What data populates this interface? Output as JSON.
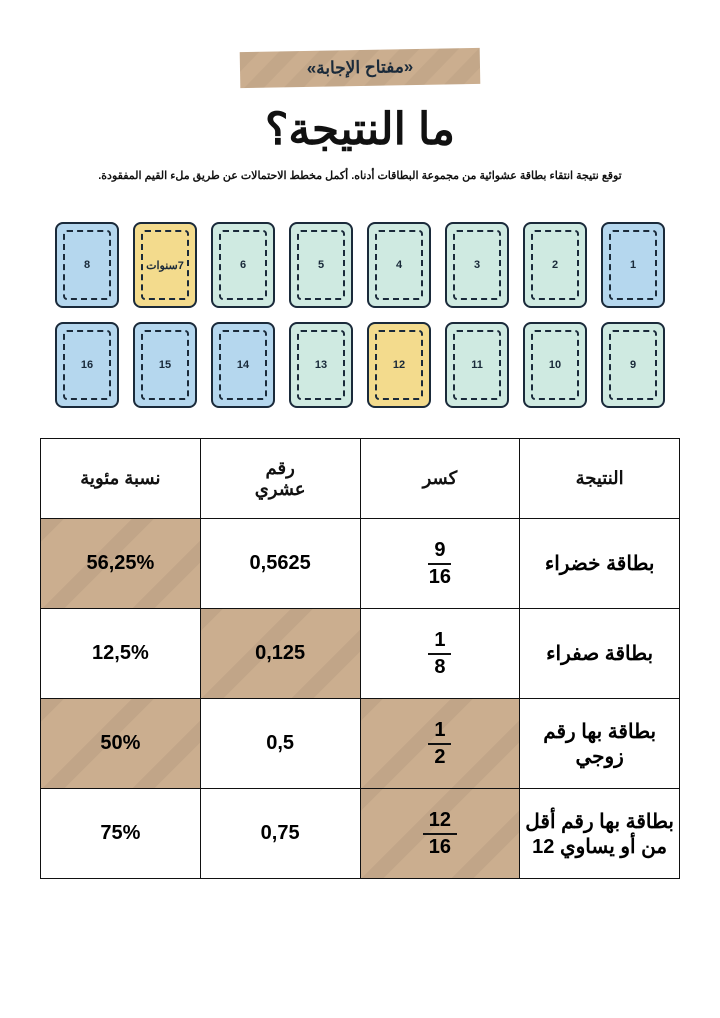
{
  "header": {
    "tape": "«مفتاح الإجابة»",
    "title": "ما النتيجة؟",
    "subtitle": "توقع نتيجة انتقاء بطاقة عشوائية من مجموعة البطاقات أدناه. أكمل مخطط الاحتمالات عن طريق ملء القيم المفقودة."
  },
  "cards": {
    "row1": [
      {
        "label": "1",
        "color": "blue"
      },
      {
        "label": "2",
        "color": "green"
      },
      {
        "label": "3",
        "color": "green"
      },
      {
        "label": "4",
        "color": "green"
      },
      {
        "label": "5",
        "color": "green"
      },
      {
        "label": "6",
        "color": "green"
      },
      {
        "label": "7سنوات",
        "color": "yellow"
      },
      {
        "label": "8",
        "color": "blue"
      }
    ],
    "row2": [
      {
        "label": "9",
        "color": "green"
      },
      {
        "label": "10",
        "color": "green"
      },
      {
        "label": "11",
        "color": "green"
      },
      {
        "label": "12",
        "color": "yellow"
      },
      {
        "label": "13",
        "color": "green"
      },
      {
        "label": "14",
        "color": "blue"
      },
      {
        "label": "15",
        "color": "blue"
      },
      {
        "label": "16",
        "color": "blue"
      }
    ]
  },
  "table": {
    "headers": {
      "outcome": "النتيجة",
      "fraction": "كسر",
      "decimal": "رقم\nعشري",
      "percent": "نسبة مئوية"
    },
    "rows": [
      {
        "outcome": "بطاقة خضراء",
        "frac_num": "9",
        "frac_den": "16",
        "frac_filled": false,
        "decimal": "0,5625",
        "decimal_filled": false,
        "percent": "56,25%",
        "percent_filled": true
      },
      {
        "outcome": "بطاقة صفراء",
        "frac_num": "1",
        "frac_den": "8",
        "frac_filled": false,
        "decimal": "0,125",
        "decimal_filled": true,
        "percent": "12,5%",
        "percent_filled": false
      },
      {
        "outcome": "بطاقة بها رقم زوجي",
        "frac_num": "1",
        "frac_den": "2",
        "frac_filled": true,
        "decimal": "0,5",
        "decimal_filled": false,
        "percent": "50%",
        "percent_filled": true
      },
      {
        "outcome": "بطاقة بها رقم أقل من أو يساوي 12",
        "frac_num": "12",
        "frac_den": "16",
        "frac_filled": true,
        "decimal": "0,75",
        "decimal_filled": false,
        "percent": "75%",
        "percent_filled": false
      }
    ]
  },
  "colors": {
    "tape": "#cbae8f",
    "blue": "#b5d7ee",
    "green": "#cfeae1",
    "yellow": "#f3db8d",
    "text": "#111111",
    "border": "#1a2a3a"
  }
}
